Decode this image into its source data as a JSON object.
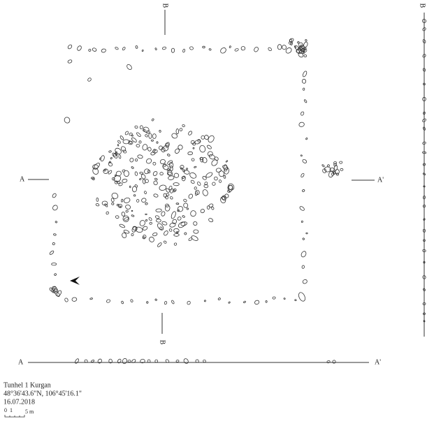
{
  "labels": {
    "b_top": "B",
    "b_right": "B",
    "a_left": "A",
    "a_right": "A'",
    "b_bottom": "B",
    "a_section_left": "A",
    "a_section_right": "A'"
  },
  "caption": {
    "site": "Tunhel 1 Kurgan",
    "coordinates": "48°36'43.6\"N, 106°45'16.1\"",
    "date": "16.07.2018",
    "scale": {
      "start": "0",
      "mid": "1",
      "end": "5 m"
    }
  }
}
